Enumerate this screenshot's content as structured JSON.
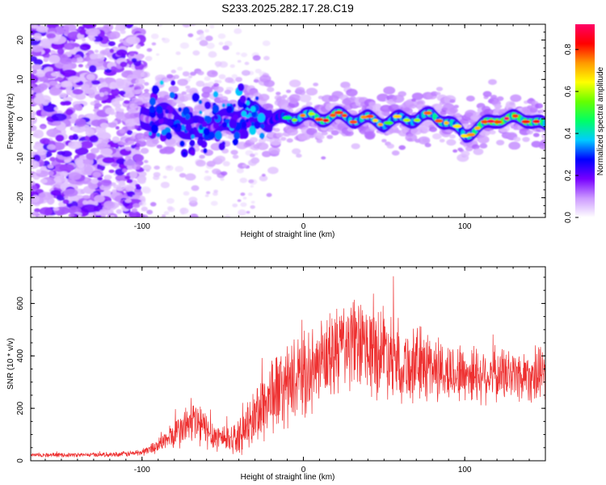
{
  "chart_data": [
    {
      "type": "heatmap",
      "title": "S233.2025.282.17.28.C19",
      "xlabel": "Height of straight line (km)",
      "ylabel": "Frequency (Hz)",
      "xlim": [
        -169,
        150
      ],
      "ylim": [
        -25,
        24
      ],
      "xticks": [
        -100,
        0,
        100
      ],
      "xtick_labels": [
        "-100",
        "0",
        "100"
      ],
      "yticks": [
        -20,
        -10,
        0,
        10,
        20
      ],
      "ytick_labels": [
        "-20",
        "-10",
        "0",
        "10",
        "20"
      ],
      "colorbar": {
        "label": "Normalized spectral amplitude",
        "range": [
          0,
          0.92
        ],
        "ticks": [
          0.0,
          0.2,
          0.4,
          0.6,
          0.8
        ],
        "tick_labels": [
          "0.0",
          "0.2",
          "0.4",
          "0.6",
          "0.8"
        ],
        "colors": [
          "#ffffff",
          "#cc99ff",
          "#7700ff",
          "#0000ff",
          "#00ccff",
          "#00ff66",
          "#66ff00",
          "#ffff00",
          "#ff9900",
          "#ff0000",
          "#ff0066"
        ]
      },
      "ridge": {
        "x": [
          -100,
          -90,
          -80,
          -70,
          -60,
          -50,
          -40,
          -30,
          -20,
          -10,
          0,
          10,
          20,
          30,
          40,
          50,
          60,
          70,
          80,
          90,
          100,
          110,
          120,
          130,
          140,
          150
        ],
        "freq": [
          0,
          1,
          0,
          -3,
          -2,
          -1,
          0,
          1,
          0,
          0,
          1,
          0,
          1,
          0,
          0,
          -1,
          0,
          0,
          1,
          -1,
          -4,
          -2,
          0,
          0,
          0,
          -2
        ],
        "amplitude": [
          0.2,
          0.25,
          0.2,
          0.15,
          0.3,
          0.25,
          0.2,
          0.35,
          0.4,
          0.5,
          0.6,
          0.7,
          0.75,
          0.6,
          0.65,
          0.55,
          0.6,
          0.55,
          0.7,
          0.65,
          0.6,
          0.75,
          0.85,
          0.8,
          0.75,
          0.7
        ]
      }
    },
    {
      "type": "line",
      "xlabel": "Height of straight line (km)",
      "ylabel": "SNR (10 * v/v)",
      "xlim": [
        -169,
        150
      ],
      "ylim": [
        0,
        740
      ],
      "xticks": [
        -100,
        0,
        100
      ],
      "xtick_labels": [
        "-100",
        "0",
        "100"
      ],
      "yticks": [
        0,
        200,
        400,
        600
      ],
      "ytick_labels": [
        "0",
        "200",
        "400",
        "600"
      ],
      "color": "#ee3030",
      "series": [
        {
          "name": "SNR",
          "x": [
            -169,
            -160,
            -150,
            -140,
            -130,
            -120,
            -110,
            -100,
            -95,
            -90,
            -85,
            -80,
            -75,
            -70,
            -65,
            -60,
            -55,
            -50,
            -45,
            -40,
            -35,
            -30,
            -25,
            -20,
            -15,
            -10,
            -5,
            0,
            5,
            10,
            15,
            20,
            25,
            30,
            35,
            40,
            45,
            50,
            55,
            60,
            65,
            70,
            75,
            80,
            85,
            90,
            95,
            100,
            105,
            110,
            115,
            120,
            125,
            130,
            135,
            140,
            145,
            150
          ],
          "center": [
            22,
            22,
            22,
            22,
            23,
            24,
            26,
            32,
            45,
            60,
            80,
            100,
            120,
            150,
            140,
            115,
            95,
            90,
            85,
            90,
            120,
            170,
            210,
            250,
            270,
            280,
            310,
            330,
            330,
            360,
            390,
            420,
            440,
            445,
            440,
            420,
            420,
            430,
            410,
            380,
            360,
            365,
            370,
            360,
            345,
            330,
            340,
            330,
            335,
            330,
            330,
            325,
            330,
            330,
            325,
            330,
            320,
            330
          ],
          "spread": [
            8,
            8,
            8,
            8,
            8,
            9,
            10,
            14,
            20,
            28,
            40,
            55,
            70,
            90,
            90,
            70,
            55,
            55,
            55,
            60,
            80,
            110,
            140,
            150,
            150,
            150,
            150,
            150,
            150,
            150,
            160,
            170,
            170,
            170,
            170,
            170,
            170,
            170,
            160,
            150,
            140,
            140,
            140,
            130,
            120,
            110,
            110,
            110,
            110,
            110,
            100,
            100,
            100,
            100,
            100,
            100,
            100,
            100
          ]
        }
      ]
    }
  ]
}
